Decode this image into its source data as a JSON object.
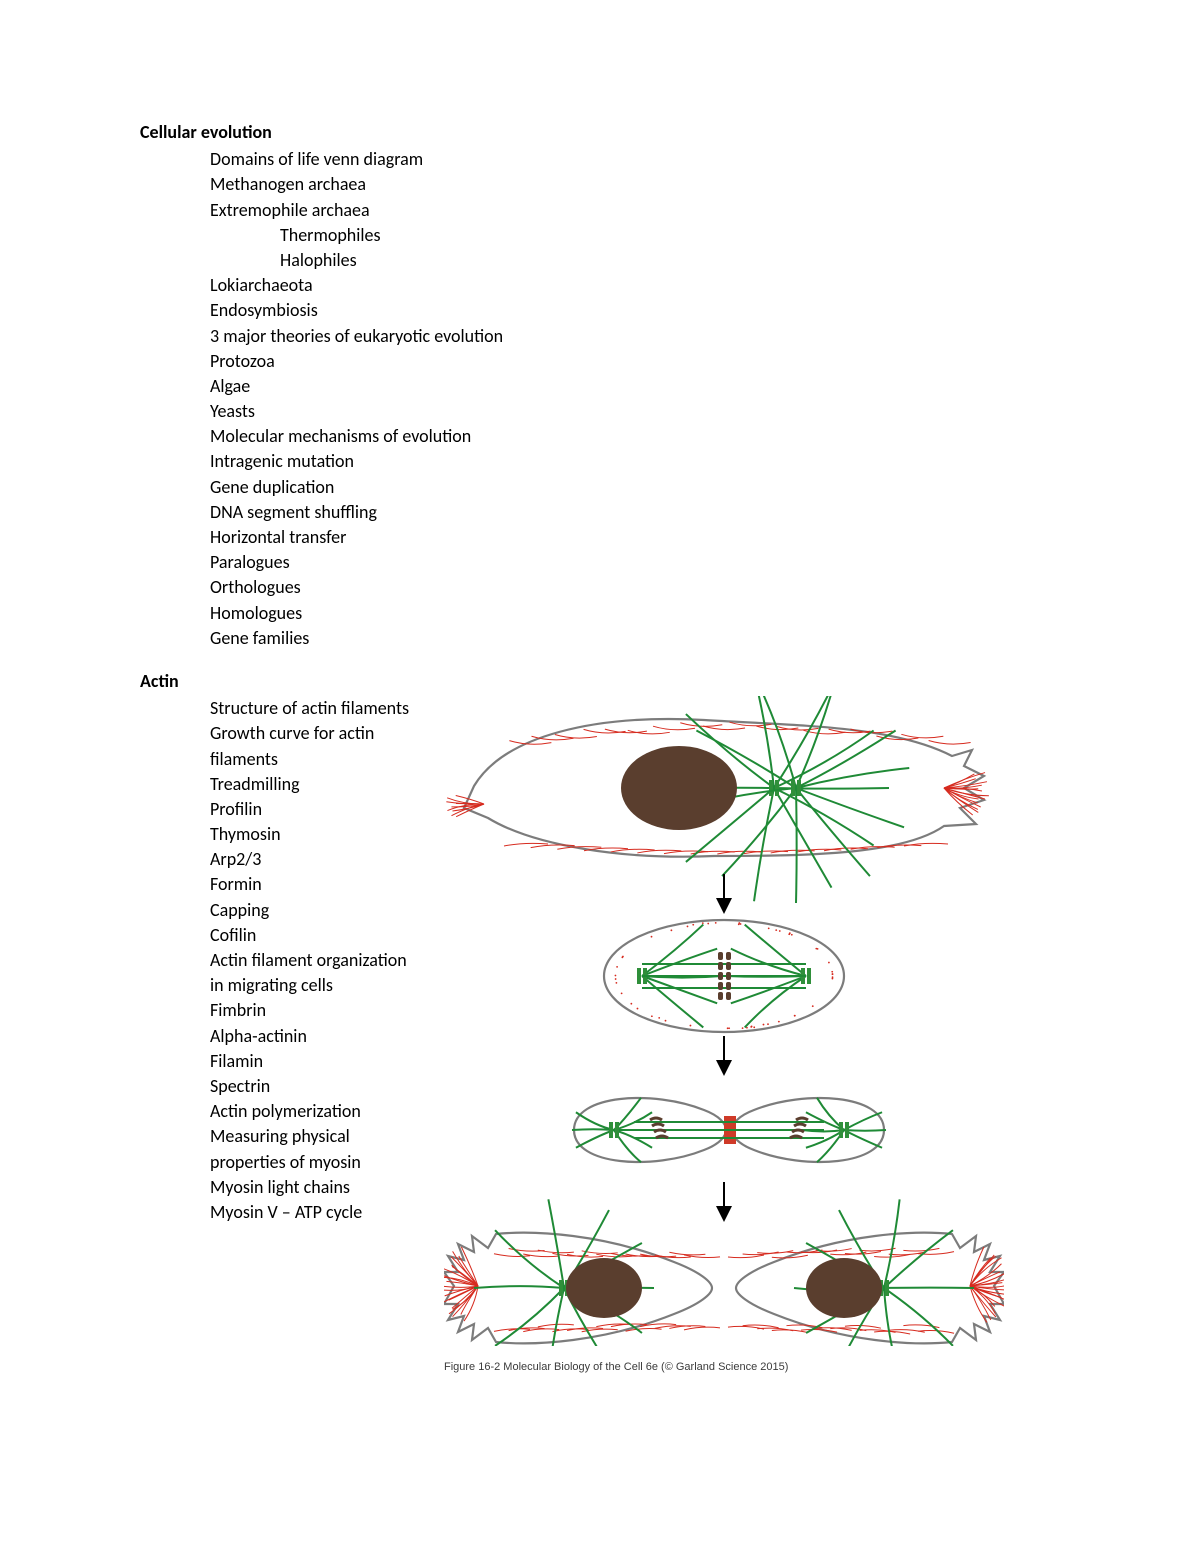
{
  "section1": {
    "heading": "Cellular evolution",
    "items": [
      "Domains of life venn diagram",
      "Methanogen archaea",
      "Extremophile archaea"
    ],
    "subitems_after_2": [
      "Thermophiles",
      "Halophiles"
    ],
    "items_b": [
      "Lokiarchaeota",
      "Endosymbiosis",
      "3 major theories of eukaryotic evolution",
      "Protozoa",
      "Algae",
      "Yeasts",
      "Molecular mechanisms of evolution",
      "Intragenic mutation",
      "Gene duplication",
      "DNA segment shuffling",
      "Horizontal transfer",
      "Paralogues",
      "Orthologues",
      "Homologues",
      "Gene families"
    ]
  },
  "section2": {
    "heading": "Actin",
    "items": [
      "Structure of actin filaments",
      "Growth curve for actin filaments",
      "Treadmilling",
      "Profilin",
      "Thymosin",
      "Arp2/3",
      "Formin",
      "Capping",
      "Cofilin",
      "Actin filament organization in migrating cells",
      "Fimbrin",
      "Alpha-actinin",
      "Filamin",
      "Spectrin",
      "Actin polymerization",
      "Measuring physical properties of myosin",
      "Myosin light chains",
      "Myosin V – ATP cycle"
    ]
  },
  "figure": {
    "caption": "Figure 16-2  Molecular Biology of the Cell 6e (© Garland Science 2015)",
    "colors": {
      "outline": "#7c7c7c",
      "actin": "#d62b1f",
      "microtubule": "#1f8a36",
      "nucleus": "#5a3e2e",
      "centrosome": "#2f8f3a",
      "bg": "#ffffff",
      "arrow": "#000000",
      "midbody": "#cf3a28"
    },
    "stroke_widths": {
      "outline": 2.2,
      "actin": 1.0,
      "microtubule": 2.0
    },
    "arrow_length": 36
  }
}
